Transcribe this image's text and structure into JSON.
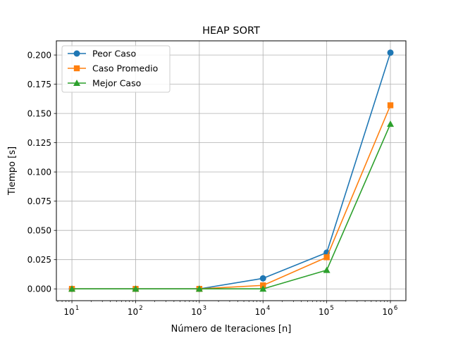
{
  "chart_data": {
    "type": "line",
    "title": "HEAP SORT",
    "xlabel": "Número de Iteraciones [n]",
    "ylabel": "Tiempo [s]",
    "xscale": "log",
    "x": [
      10,
      100,
      1000,
      10000,
      100000,
      1000000
    ],
    "xtick_labels": [
      {
        "base": "10",
        "exp": "1"
      },
      {
        "base": "10",
        "exp": "2"
      },
      {
        "base": "10",
        "exp": "3"
      },
      {
        "base": "10",
        "exp": "4"
      },
      {
        "base": "10",
        "exp": "5"
      },
      {
        "base": "10",
        "exp": "6"
      }
    ],
    "xlim": [
      5.7,
      1750000
    ],
    "ylim": [
      -0.0101,
      0.2121
    ],
    "yticks": [
      0.0,
      0.025,
      0.05,
      0.075,
      0.1,
      0.125,
      0.15,
      0.175,
      0.2
    ],
    "ytick_labels": [
      "0.000",
      "0.025",
      "0.050",
      "0.075",
      "0.100",
      "0.125",
      "0.150",
      "0.175",
      "0.200"
    ],
    "grid": true,
    "legend_position": "top-left",
    "series": [
      {
        "name": "Peor Caso",
        "color": "#1f77b4",
        "marker": "circle",
        "values": [
          0.0,
          0.0,
          0.0,
          0.009,
          0.031,
          0.202
        ]
      },
      {
        "name": "Caso Promedio",
        "color": "#ff7f0e",
        "marker": "square",
        "values": [
          0.0,
          0.0,
          0.0,
          0.003,
          0.027,
          0.157
        ]
      },
      {
        "name": "Mejor Caso",
        "color": "#2ca02c",
        "marker": "triangle",
        "values": [
          0.0,
          0.0,
          0.0,
          0.0,
          0.016,
          0.141
        ]
      }
    ]
  }
}
